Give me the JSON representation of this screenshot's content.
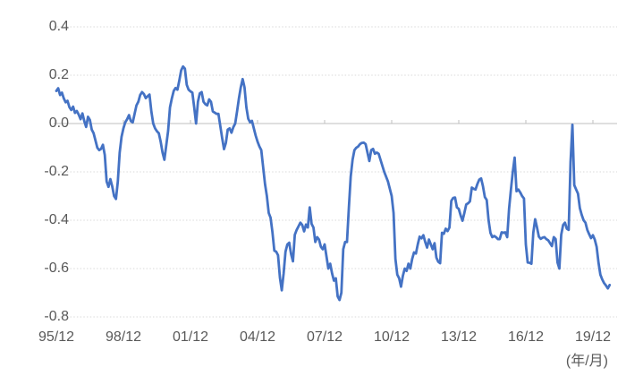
{
  "unit_label": "(年/月)",
  "colors": {
    "line": "#4472C4",
    "gridline": "#D9D9D9",
    "axis": "#BFBFBF",
    "label_text": "#595959",
    "background": "#FFFFFF"
  },
  "chart_data": {
    "type": "line",
    "title": "",
    "xlabel": "(年/月)",
    "ylabel": "",
    "start_period": "1995/12",
    "frequency": "monthly",
    "legend": false,
    "grid": true,
    "x_axis": {
      "tick_labels": [
        "95/12",
        "98/12",
        "01/12",
        "04/12",
        "07/12",
        "10/12",
        "13/12",
        "16/12",
        "19/12"
      ],
      "tick_month_offsets": [
        0,
        36,
        72,
        108,
        144,
        180,
        216,
        252,
        288
      ],
      "unit_label": "(年/月)"
    },
    "y_axis": {
      "min": -0.8,
      "max": 0.4,
      "tick_step": 0.2,
      "tick_labels": [
        "0.4",
        "0.2",
        "0.0",
        "-0.2",
        "-0.4",
        "-0.6",
        "-0.8"
      ],
      "tick_values": [
        0.4,
        0.2,
        0.0,
        -0.2,
        -0.4,
        -0.6,
        -0.8
      ],
      "zero_axis_value": 0.0
    },
    "series": [
      {
        "name": "series-1",
        "color": "#4472C4",
        "x_unit": "months since 1995/12",
        "values": [
          0.135,
          0.146,
          0.118,
          0.128,
          0.104,
          0.088,
          0.094,
          0.068,
          0.056,
          0.07,
          0.044,
          0.052,
          0.037,
          0.018,
          0.042,
          0.01,
          -0.014,
          0.028,
          0.015,
          -0.025,
          -0.04,
          -0.07,
          -0.1,
          -0.11,
          -0.105,
          -0.088,
          -0.13,
          -0.24,
          -0.262,
          -0.23,
          -0.26,
          -0.3,
          -0.312,
          -0.24,
          -0.12,
          -0.055,
          -0.02,
          0.005,
          0.018,
          0.035,
          0.01,
          0.005,
          0.04,
          0.075,
          0.09,
          0.118,
          0.13,
          0.122,
          0.105,
          0.113,
          0.12,
          0.05,
          0.0,
          -0.02,
          -0.032,
          -0.04,
          -0.075,
          -0.12,
          -0.15,
          -0.09,
          -0.03,
          0.067,
          0.104,
          0.135,
          0.147,
          0.14,
          0.178,
          0.22,
          0.236,
          0.227,
          0.16,
          0.14,
          0.133,
          0.128,
          0.067,
          0.0,
          0.09,
          0.125,
          0.13,
          0.09,
          0.08,
          0.075,
          0.1,
          0.09,
          0.05,
          0.045,
          0.04,
          0.04,
          -0.01,
          -0.06,
          -0.106,
          -0.08,
          -0.025,
          -0.02,
          -0.038,
          -0.015,
          0.0,
          0.05,
          0.104,
          0.15,
          0.184,
          0.15,
          0.067,
          0.02,
          0.005,
          0.011,
          -0.02,
          -0.05,
          -0.075,
          -0.095,
          -0.11,
          -0.18,
          -0.25,
          -0.3,
          -0.37,
          -0.39,
          -0.45,
          -0.526,
          -0.53,
          -0.545,
          -0.637,
          -0.69,
          -0.62,
          -0.53,
          -0.5,
          -0.493,
          -0.54,
          -0.57,
          -0.46,
          -0.44,
          -0.425,
          -0.41,
          -0.42,
          -0.446,
          -0.418,
          -0.43,
          -0.347,
          -0.415,
          -0.43,
          -0.49,
          -0.47,
          -0.48,
          -0.51,
          -0.52,
          -0.5,
          -0.55,
          -0.6,
          -0.58,
          -0.62,
          -0.65,
          -0.64,
          -0.715,
          -0.73,
          -0.7,
          -0.52,
          -0.49,
          -0.49,
          -0.35,
          -0.22,
          -0.15,
          -0.11,
          -0.1,
          -0.095,
          -0.085,
          -0.08,
          -0.079,
          -0.085,
          -0.12,
          -0.155,
          -0.11,
          -0.105,
          -0.125,
          -0.12,
          -0.125,
          -0.15,
          -0.175,
          -0.2,
          -0.22,
          -0.24,
          -0.27,
          -0.3,
          -0.37,
          -0.56,
          -0.625,
          -0.64,
          -0.675,
          -0.63,
          -0.6,
          -0.61,
          -0.58,
          -0.6,
          -0.56,
          -0.533,
          -0.538,
          -0.5,
          -0.468,
          -0.475,
          -0.462,
          -0.49,
          -0.513,
          -0.48,
          -0.5,
          -0.52,
          -0.495,
          -0.555,
          -0.572,
          -0.578,
          -0.452,
          -0.456,
          -0.435,
          -0.445,
          -0.43,
          -0.32,
          -0.308,
          -0.306,
          -0.347,
          -0.353,
          -0.38,
          -0.402,
          -0.37,
          -0.335,
          -0.33,
          -0.322,
          -0.265,
          -0.27,
          -0.273,
          -0.25,
          -0.232,
          -0.227,
          -0.26,
          -0.304,
          -0.316,
          -0.4,
          -0.452,
          -0.47,
          -0.465,
          -0.47,
          -0.478,
          -0.478,
          -0.45,
          -0.452,
          -0.45,
          -0.47,
          -0.353,
          -0.273,
          -0.2,
          -0.141,
          -0.28,
          -0.273,
          -0.285,
          -0.3,
          -0.31,
          -0.5,
          -0.575,
          -0.576,
          -0.58,
          -0.452,
          -0.396,
          -0.43,
          -0.468,
          -0.477,
          -0.472,
          -0.47,
          -0.478,
          -0.483,
          -0.495,
          -0.507,
          -0.47,
          -0.478,
          -0.575,
          -0.6,
          -0.46,
          -0.42,
          -0.41,
          -0.435,
          -0.44,
          -0.16,
          -0.005,
          -0.255,
          -0.273,
          -0.29,
          -0.35,
          -0.378,
          -0.4,
          -0.41,
          -0.44,
          -0.458,
          -0.474,
          -0.462,
          -0.48,
          -0.51,
          -0.575,
          -0.625,
          -0.645,
          -0.66,
          -0.67,
          -0.682,
          -0.668
        ]
      }
    ]
  }
}
